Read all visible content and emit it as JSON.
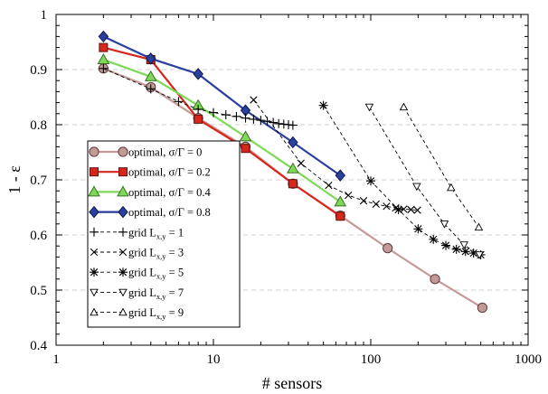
{
  "chart_data": {
    "type": "line",
    "xlabel": "# sensors",
    "ylabel": "1 - ε",
    "xscale": "log",
    "xlim": [
      1,
      1000
    ],
    "ylim": [
      0.4,
      1.0
    ],
    "grid": "horizontal dashed",
    "legend_position": "bottom-left",
    "x_ticks": [
      1,
      10,
      100,
      1000
    ],
    "x_tick_labels": [
      "1",
      "10",
      "100",
      "1000"
    ],
    "y_ticks": [
      0.4,
      0.5,
      0.6,
      0.7,
      0.8,
      0.9,
      1.0
    ],
    "y_tick_labels": [
      "0.4",
      "0.5",
      "0.6",
      "0.7",
      "0.8",
      "0.9",
      "1"
    ],
    "series": [
      {
        "name": "optimal, σ/Γ = 0",
        "legend": {
          "prefix": "optimal, σ/Γ = 0",
          "sub": "",
          "suffix": ""
        },
        "color": "#c49a96",
        "marker": "circle",
        "marker_fill": "#c49a96",
        "dashed": false,
        "x": [
          2,
          4,
          8,
          16,
          32,
          64,
          128,
          256,
          512
        ],
        "y": [
          0.902,
          0.868,
          0.812,
          0.76,
          0.693,
          0.635,
          0.576,
          0.52,
          0.468
        ]
      },
      {
        "name": "optimal, σ/Γ = 0.2",
        "legend": {
          "prefix": "optimal, σ/Γ = 0.2",
          "sub": "",
          "suffix": ""
        },
        "color": "#d9261c",
        "marker": "square",
        "marker_fill": "#d9261c",
        "dashed": false,
        "x": [
          2,
          4,
          8,
          16,
          32,
          64
        ],
        "y": [
          0.94,
          0.918,
          0.81,
          0.757,
          0.693,
          0.634
        ]
      },
      {
        "name": "optimal, σ/Γ = 0.4",
        "legend": {
          "prefix": "optimal, σ/Γ = 0.4",
          "sub": "",
          "suffix": ""
        },
        "color": "#7ed957",
        "marker": "triangle",
        "marker_fill": "#7ed957",
        "dashed": false,
        "x": [
          2,
          4,
          8,
          16,
          32,
          64
        ],
        "y": [
          0.918,
          0.887,
          0.835,
          0.778,
          0.72,
          0.66
        ]
      },
      {
        "name": "optimal, σ/Γ = 0.8",
        "legend": {
          "prefix": "optimal, σ/Γ = 0.8",
          "sub": "",
          "suffix": ""
        },
        "color": "#2b3f9e",
        "marker": "diamond",
        "marker_fill": "#2b3f9e",
        "dashed": false,
        "x": [
          2,
          4,
          8,
          16,
          32,
          64
        ],
        "y": [
          0.96,
          0.92,
          0.892,
          0.826,
          0.768,
          0.708
        ]
      },
      {
        "name": "grid Lx,y = 1",
        "legend": {
          "prefix": "grid L",
          "sub": "x,y",
          "suffix": " = 1"
        },
        "color": "#000000",
        "marker": "plus",
        "marker_fill": "none",
        "dashed": true,
        "x": [
          2,
          4,
          6,
          8,
          10,
          12,
          14,
          16,
          18,
          20,
          22,
          24,
          26,
          28,
          30,
          32
        ],
        "y": [
          0.902,
          0.865,
          0.842,
          0.828,
          0.822,
          0.818,
          0.815,
          0.812,
          0.81,
          0.808,
          0.806,
          0.804,
          0.802,
          0.801,
          0.8,
          0.799
        ]
      },
      {
        "name": "grid Lx,y = 3",
        "legend": {
          "prefix": "grid L",
          "sub": "x,y",
          "suffix": " = 3"
        },
        "color": "#000000",
        "marker": "cross",
        "marker_fill": "none",
        "dashed": true,
        "x": [
          18,
          36,
          54,
          72,
          90,
          108,
          126,
          144,
          162,
          180,
          198
        ],
        "y": [
          0.845,
          0.73,
          0.69,
          0.672,
          0.662,
          0.656,
          0.652,
          0.649,
          0.647,
          0.646,
          0.645
        ]
      },
      {
        "name": "grid Lx,y = 5",
        "legend": {
          "prefix": "grid L",
          "sub": "x,y",
          "suffix": " = 5"
        },
        "color": "#000000",
        "marker": "star",
        "marker_fill": "none",
        "dashed": true,
        "x": [
          50,
          100,
          150,
          200,
          250,
          300,
          350,
          400,
          450,
          500
        ],
        "y": [
          0.835,
          0.698,
          0.646,
          0.611,
          0.592,
          0.581,
          0.574,
          0.57,
          0.567,
          0.564
        ]
      },
      {
        "name": "grid Lx,y = 7",
        "legend": {
          "prefix": "grid L",
          "sub": "x,y",
          "suffix": " = 7"
        },
        "color": "#000000",
        "marker": "triangle-down",
        "marker_fill": "none",
        "dashed": true,
        "x": [
          98,
          196,
          294,
          392,
          490
        ],
        "y": [
          0.832,
          0.688,
          0.62,
          0.582,
          0.564
        ]
      },
      {
        "name": "grid Lx,y = 9",
        "legend": {
          "prefix": "grid L",
          "sub": "x,y",
          "suffix": " = 9"
        },
        "color": "#000000",
        "marker": "triangle-open",
        "marker_fill": "none",
        "dashed": true,
        "x": [
          162,
          324,
          486
        ],
        "y": [
          0.832,
          0.686,
          0.614
        ]
      }
    ]
  }
}
